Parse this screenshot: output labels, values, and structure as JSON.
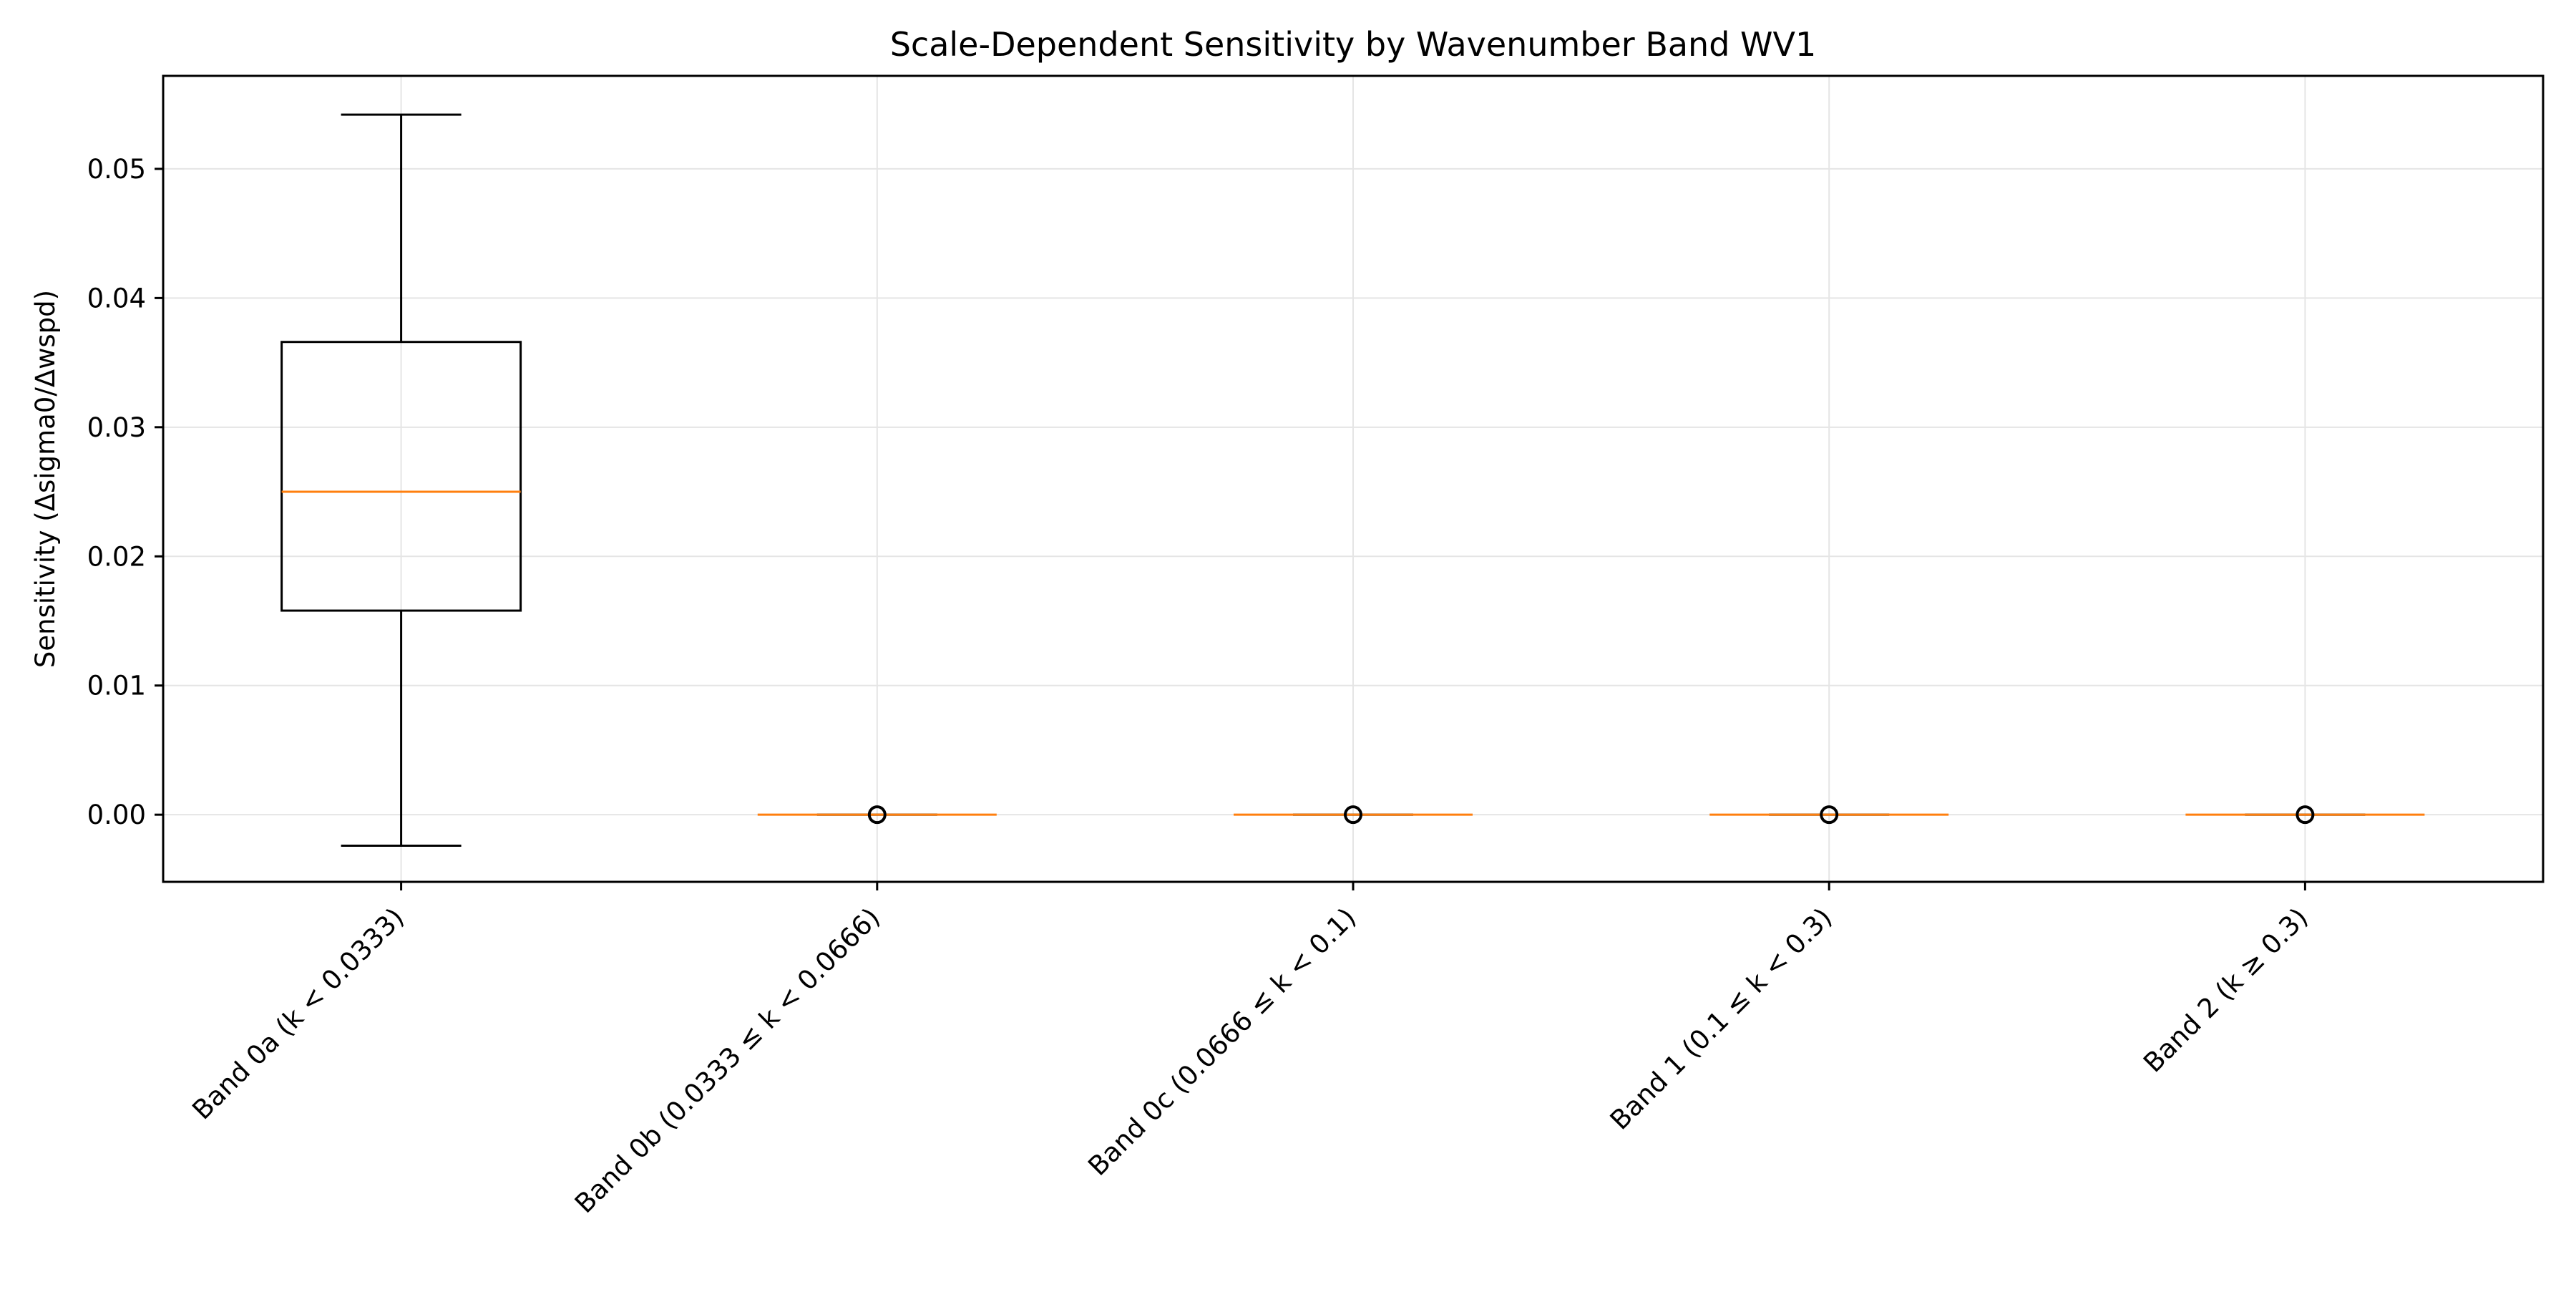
{
  "chart_data": {
    "type": "box",
    "title": "Scale-Dependent Sensitivity by Wavenumber Band WV1",
    "xlabel": "",
    "ylabel": "Sensitivity (Δsigma0/Δwspd)",
    "ylim": [
      -0.0052,
      0.0572
    ],
    "yticks": [
      0.0,
      0.01,
      0.02,
      0.03,
      0.04,
      0.05
    ],
    "ytick_labels": [
      "0.00",
      "0.01",
      "0.02",
      "0.03",
      "0.04",
      "0.05"
    ],
    "grid": true,
    "categories": [
      "Band 0a (k < 0.0333)",
      "Band 0b (0.0333 ≤ k < 0.0666)",
      "Band 0c (0.0666 ≤ k < 0.1)",
      "Band 1 (0.1 ≤ k < 0.3)",
      "Band 2 (k ≥ 0.3)"
    ],
    "boxes": [
      {
        "whisker_low": -0.0024,
        "q1": 0.0158,
        "median": 0.025,
        "q3": 0.0366,
        "whisker_high": 0.0542,
        "fliers": []
      },
      {
        "whisker_low": 0.0,
        "q1": 0.0,
        "median": 0.0,
        "q3": 0.0,
        "whisker_high": 0.0,
        "fliers": [
          0.0
        ]
      },
      {
        "whisker_low": 0.0,
        "q1": 0.0,
        "median": 0.0,
        "q3": 0.0,
        "whisker_high": 0.0,
        "fliers": [
          0.0
        ]
      },
      {
        "whisker_low": 0.0,
        "q1": 0.0,
        "median": 0.0,
        "q3": 0.0,
        "whisker_high": 0.0,
        "fliers": [
          0.0
        ]
      },
      {
        "whisker_low": 0.0,
        "q1": 0.0,
        "median": 0.0,
        "q3": 0.0,
        "whisker_high": 0.0,
        "fliers": [
          0.0
        ]
      }
    ],
    "colors": {
      "box": "#000000",
      "median": "#ff7f0e",
      "grid": "#e5e5e5",
      "flier": "#000000"
    }
  }
}
